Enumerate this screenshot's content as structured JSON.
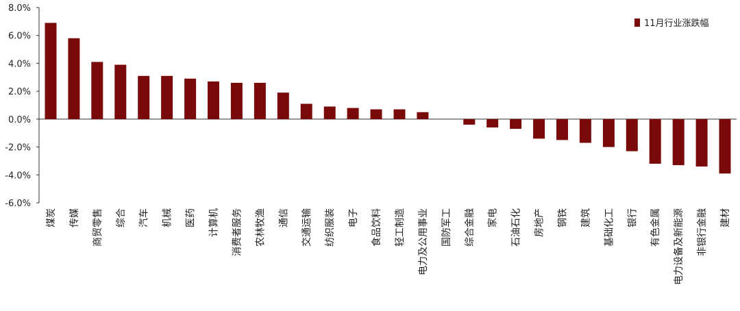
{
  "chart_data": {
    "type": "bar",
    "categories": [
      "煤炭",
      "传媒",
      "商贸零售",
      "综合",
      "汽车",
      "机械",
      "医药",
      "计算机",
      "消费者服务",
      "农林牧渔",
      "通信",
      "交通运输",
      "纺织服装",
      "电子",
      "食品饮料",
      "轻工制造",
      "电力及公用事业",
      "国防军工",
      "综合金融",
      "家电",
      "石油石化",
      "房地产",
      "钢铁",
      "建筑",
      "基础化工",
      "银行",
      "有色金属",
      "电力设备及新能源",
      "非银行金融",
      "建材"
    ],
    "series": [
      {
        "name": "11月行业涨跌幅",
        "values": [
          6.9,
          5.8,
          4.1,
          3.9,
          3.1,
          3.1,
          2.9,
          2.7,
          2.6,
          2.6,
          1.9,
          1.1,
          0.9,
          0.8,
          0.7,
          0.7,
          0.5,
          0.0,
          -0.4,
          -0.6,
          -0.7,
          -1.4,
          -1.5,
          -1.7,
          -2.0,
          -2.3,
          -3.2,
          -3.3,
          -3.4,
          -3.9
        ]
      }
    ],
    "ylim": [
      -6.0,
      8.0
    ],
    "yticks": [
      "8.0%",
      "6.0%",
      "4.0%",
      "2.0%",
      "0.0%",
      "-2.0%",
      "-4.0%",
      "-6.0%"
    ],
    "legend_position": "top-right",
    "grid": false,
    "bar_color": "#7a0a0a"
  }
}
